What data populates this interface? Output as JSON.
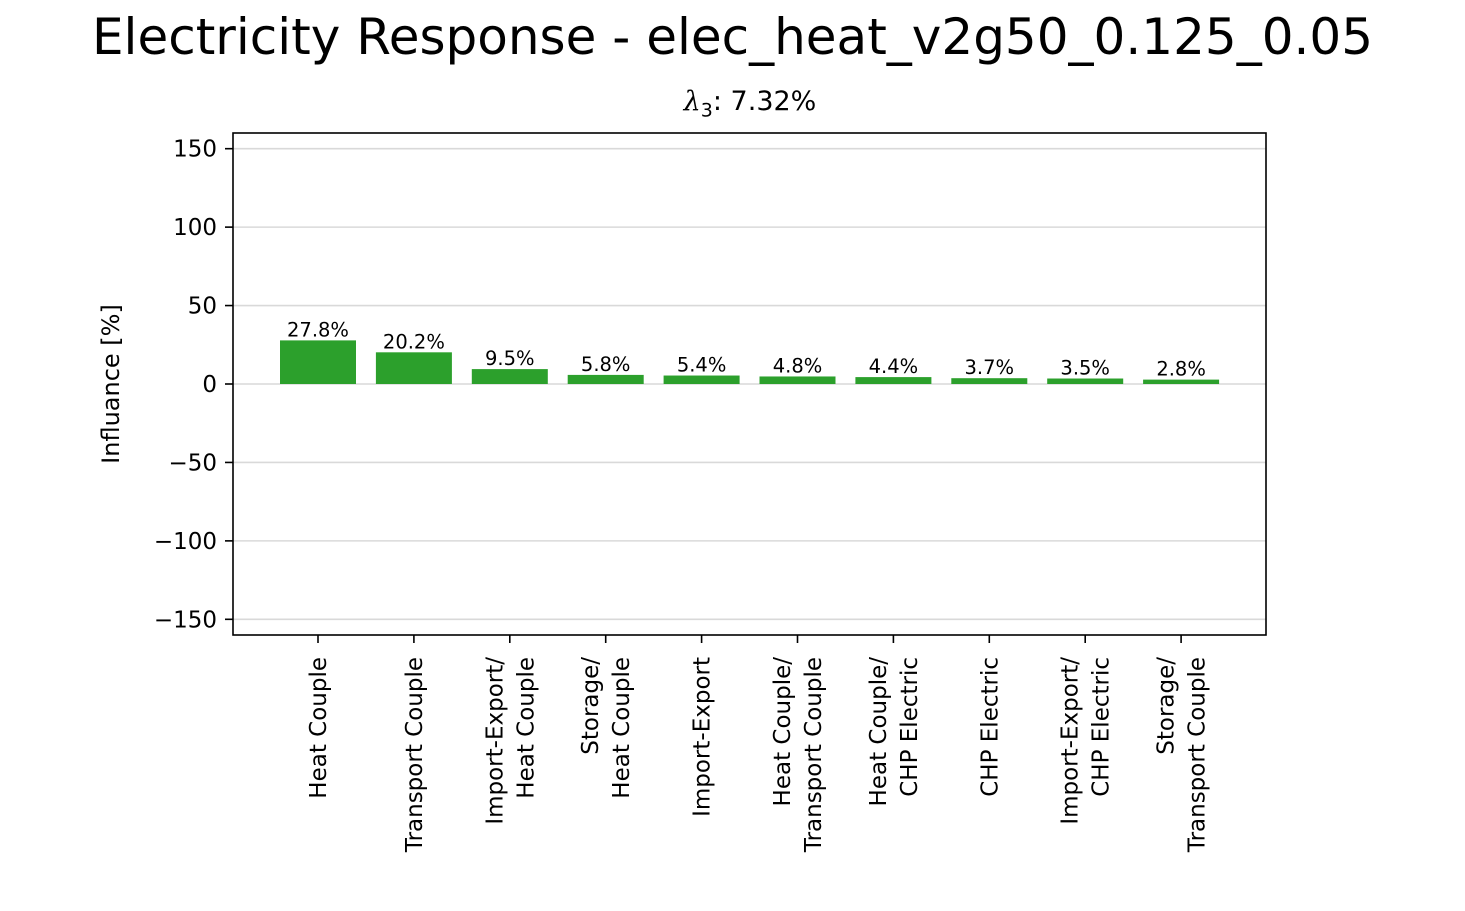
{
  "chart_data": {
    "type": "bar",
    "title": "Electricity Response - elec_heat_v2g50_0.125_0.05",
    "subtitle": {
      "symbol": "λ",
      "subscript": "3",
      "text": ": 7.32%"
    },
    "ylabel": "Influance [%]",
    "xlabel": "",
    "ylim": [
      -160,
      160
    ],
    "yticks": [
      150,
      100,
      50,
      0,
      -50,
      -100,
      -150
    ],
    "ytick_labels": [
      "150",
      "100",
      "50",
      "0",
      "−50",
      "−100",
      "−150"
    ],
    "grid": "horizontal",
    "bar_color": "#2ca02c",
    "categories": [
      [
        "Heat Couple"
      ],
      [
        "Transport Couple"
      ],
      [
        "Import-Export/",
        "Heat Couple"
      ],
      [
        "Storage/",
        "Heat Couple"
      ],
      [
        "Import-Export"
      ],
      [
        "Heat Couple/",
        "Transport Couple"
      ],
      [
        "Heat Couple/",
        "CHP Electric"
      ],
      [
        "CHP Electric"
      ],
      [
        "Import-Export/",
        "CHP Electric"
      ],
      [
        "Storage/",
        "Transport Couple"
      ]
    ],
    "values": [
      27.8,
      20.2,
      9.5,
      5.8,
      5.4,
      4.8,
      4.4,
      3.7,
      3.5,
      2.8
    ],
    "value_labels": [
      "27.8%",
      "20.2%",
      "9.5%",
      "5.8%",
      "5.4%",
      "4.8%",
      "4.4%",
      "3.7%",
      "3.5%",
      "2.8%"
    ]
  }
}
